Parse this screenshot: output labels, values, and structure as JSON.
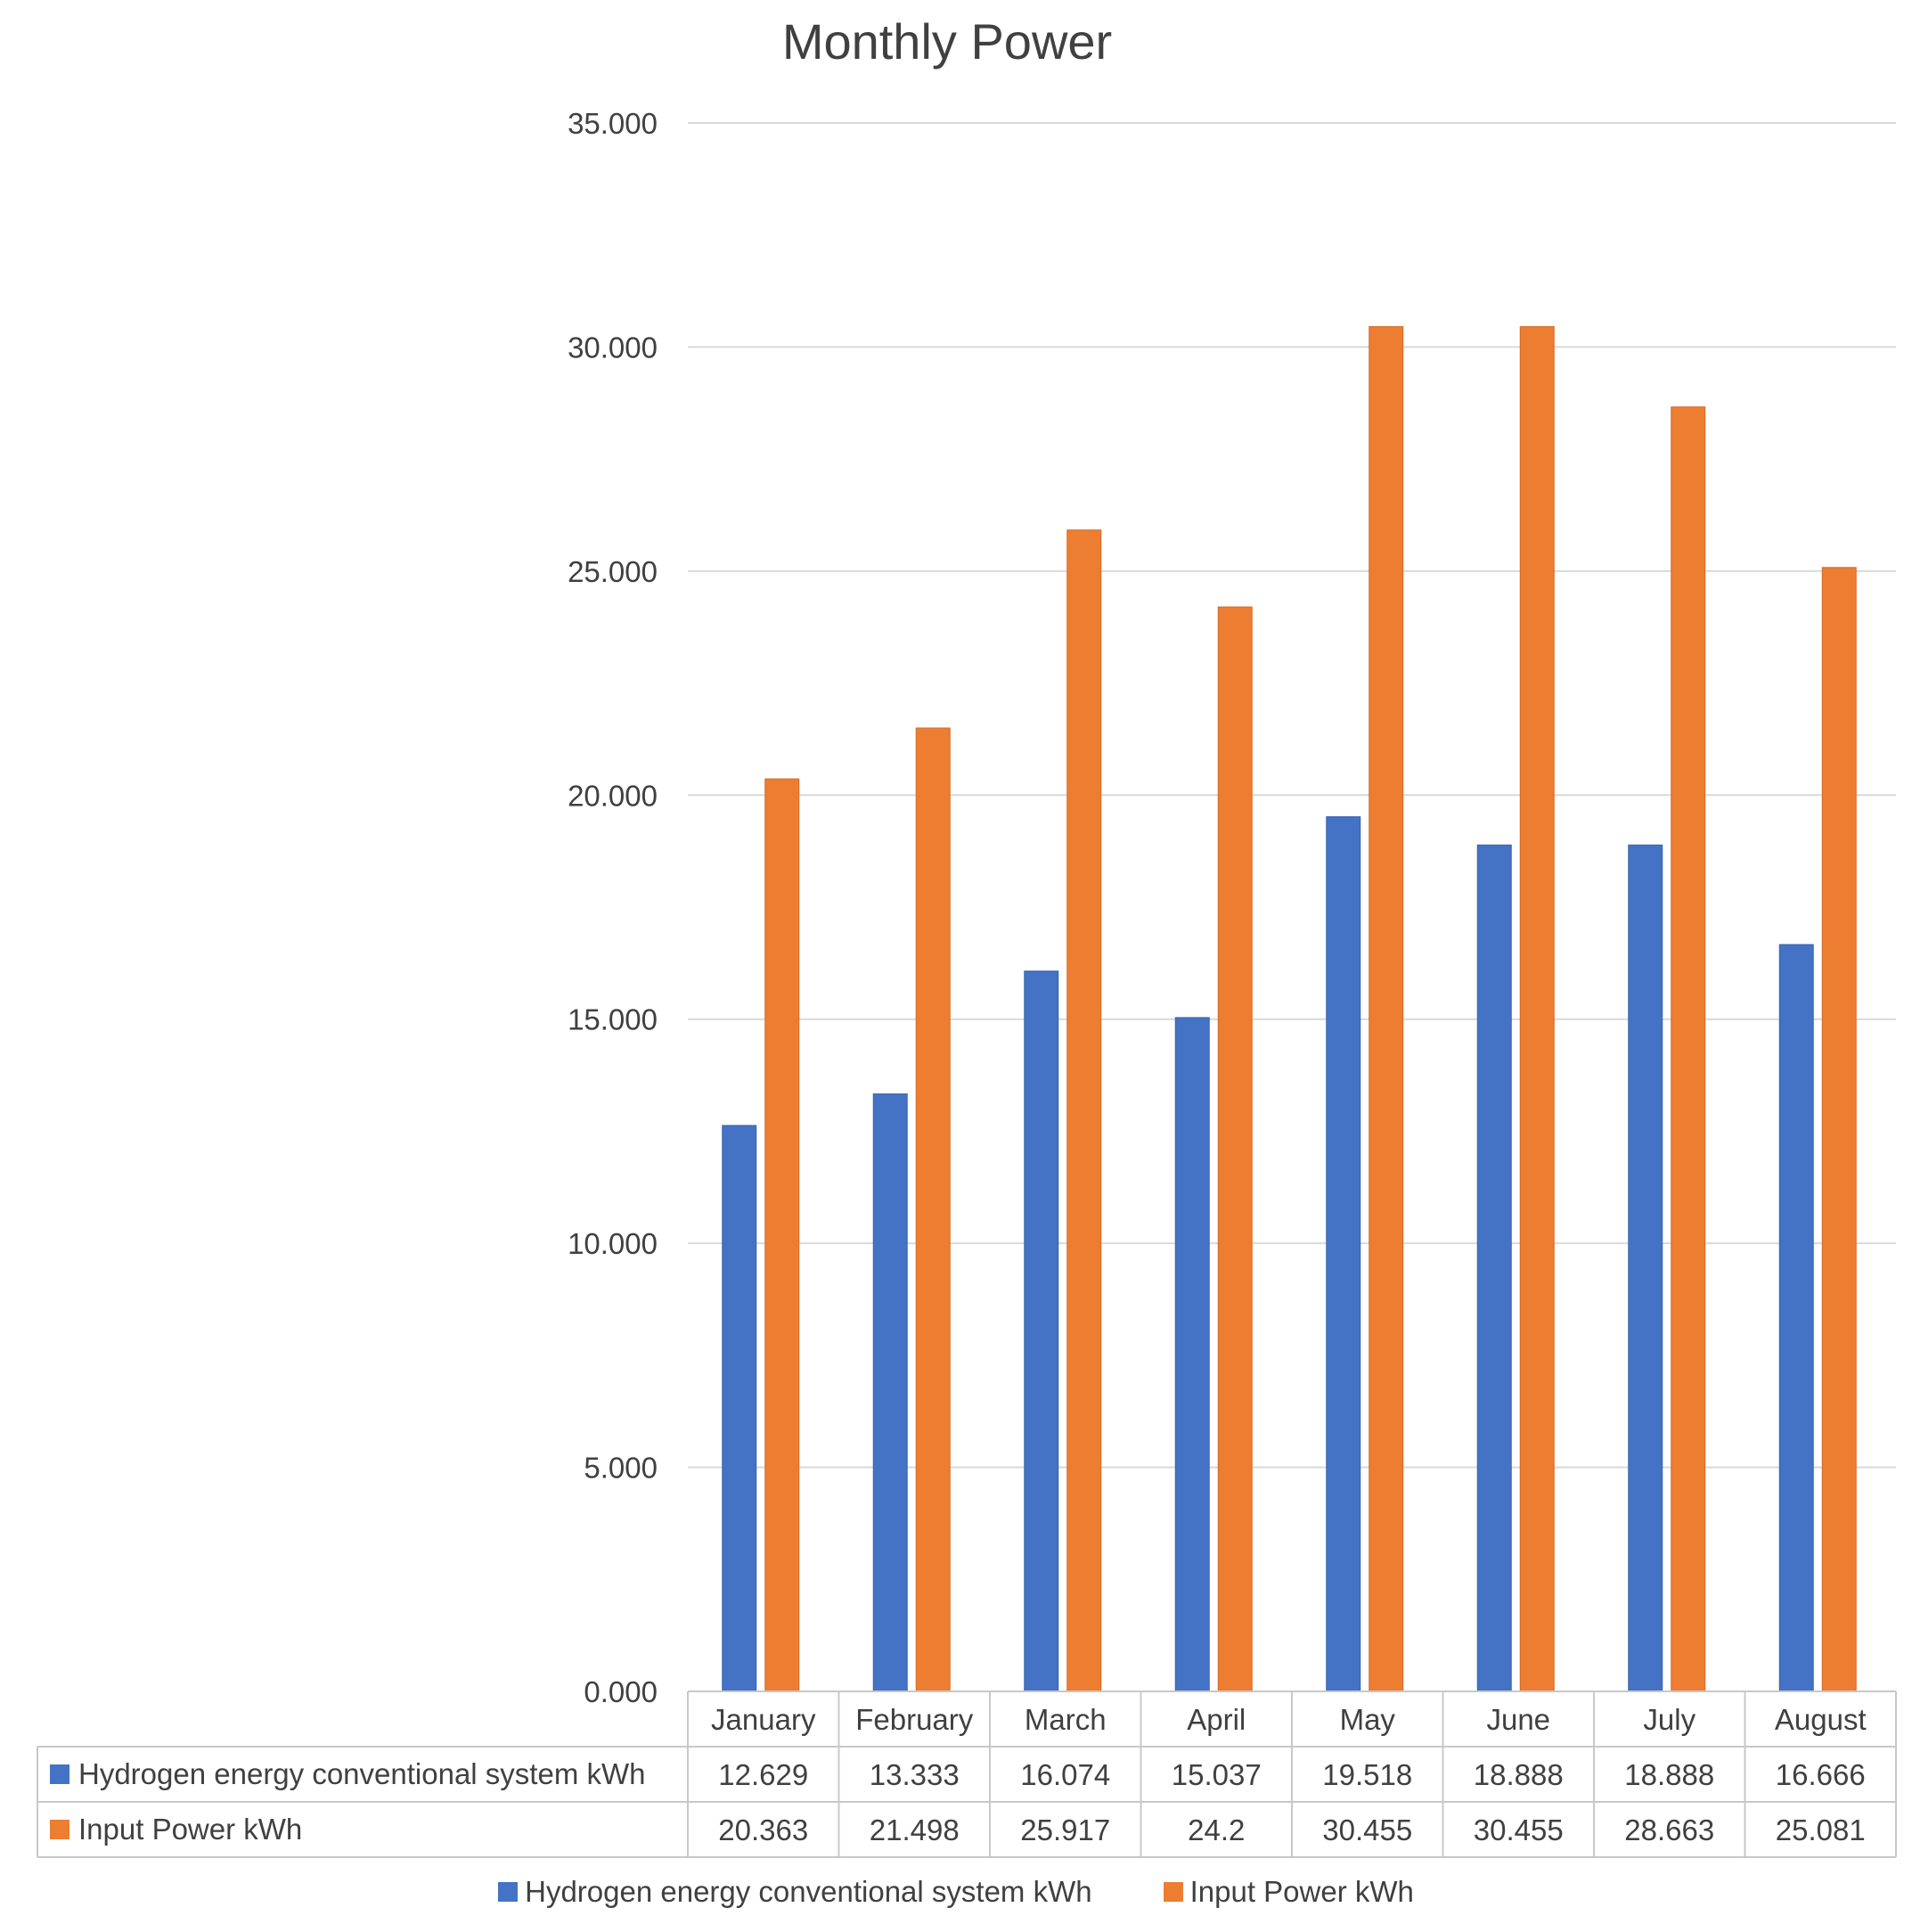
{
  "chart_data": {
    "type": "bar",
    "title": "Monthly Power",
    "categories": [
      "January",
      "February",
      "March",
      "April",
      "May",
      "June",
      "July",
      "August"
    ],
    "series": [
      {
        "name": "Hydrogen energy conventional system kWh",
        "color": "#4472C4",
        "values": [
          12.629,
          13.333,
          16.074,
          15.037,
          19.518,
          18.888,
          18.888,
          16.666
        ],
        "labels": [
          "12.629",
          "13.333",
          "16.074",
          "15.037",
          "19.518",
          "18.888",
          "18.888",
          "16.666"
        ]
      },
      {
        "name": "Input Power kWh",
        "color": "#ED7D31",
        "values": [
          20.363,
          21.498,
          25.917,
          24.2,
          30.455,
          30.455,
          28.663,
          25.081
        ],
        "labels": [
          "20.363",
          "21.498",
          "25.917",
          "24.2",
          "30.455",
          "30.455",
          "28.663",
          "25.081"
        ]
      }
    ],
    "ylim": [
      0,
      35
    ],
    "yticks": [
      "0.000",
      "5.000",
      "10.000",
      "15.000",
      "20.000",
      "25.000",
      "30.000",
      "35.000"
    ],
    "xlabel": "",
    "ylabel": "",
    "grid": true,
    "legend": "bottom",
    "data_table": true
  }
}
